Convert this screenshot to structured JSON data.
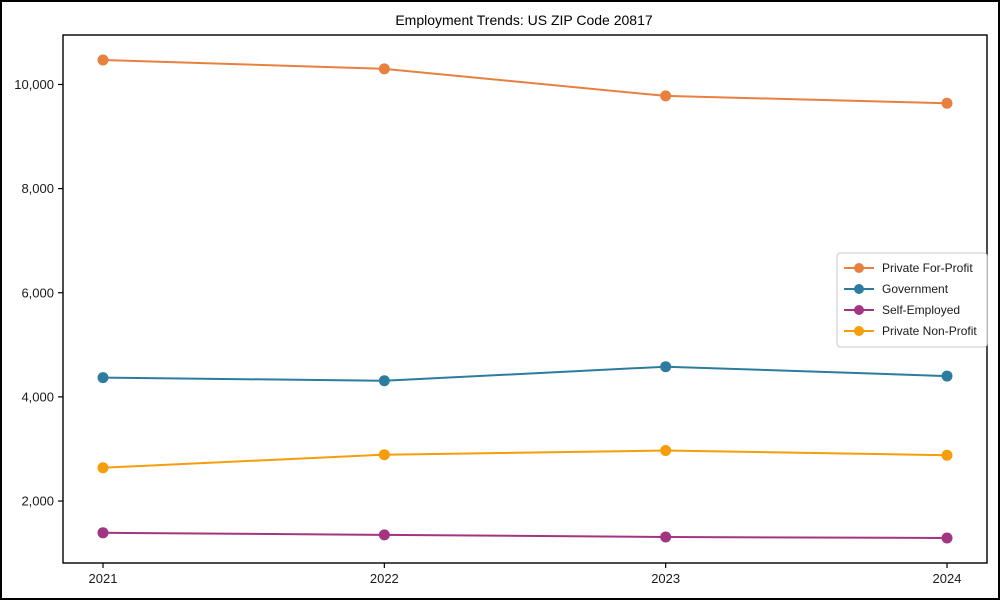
{
  "chart_data": {
    "type": "line",
    "title": "Employment Trends: US ZIP Code 20817",
    "x": [
      "2021",
      "2022",
      "2023",
      "2024"
    ],
    "series": [
      {
        "name": "Private For-Profit",
        "color": "#E8803F",
        "values": [
          10470,
          10300,
          9780,
          9640
        ]
      },
      {
        "name": "Government",
        "color": "#2C7CA0",
        "values": [
          4370,
          4310,
          4580,
          4400
        ]
      },
      {
        "name": "Self-Employed",
        "color": "#A33482",
        "values": [
          1390,
          1350,
          1310,
          1290
        ]
      },
      {
        "name": "Private Non-Profit",
        "color": "#F59D0A",
        "values": [
          2640,
          2890,
          2970,
          2880
        ]
      }
    ],
    "xlabel": "",
    "ylabel": "",
    "ylim": [
      810,
      10950
    ],
    "yticks": [
      2000,
      4000,
      6000,
      8000,
      10000
    ],
    "grid": false,
    "legend_position": "center-right",
    "marker": "circle",
    "colors": {
      "background": "#ffffff",
      "frame": "#000000",
      "legend_border": "#c9c9c9"
    }
  }
}
